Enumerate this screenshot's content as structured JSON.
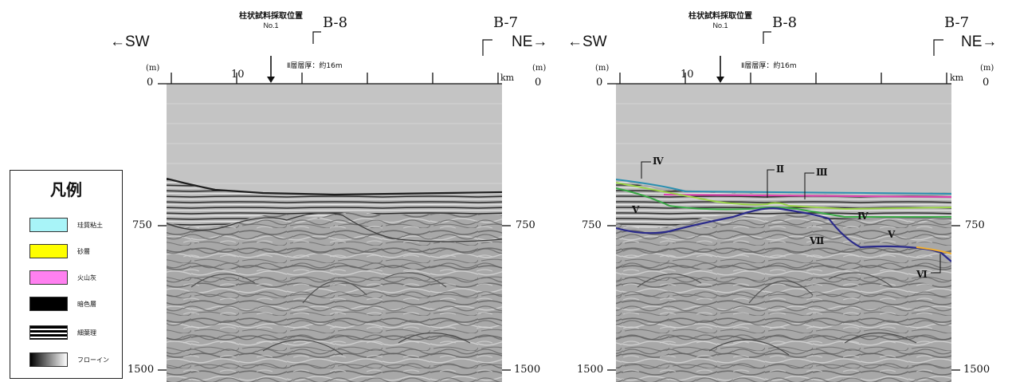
{
  "left_panel": {
    "dir_left": "←SW",
    "dir_right": "NE→",
    "sample_title": "柱状試料採取位置",
    "sample_no": "No.1",
    "borehole_b8": "B-8",
    "borehole_b7": "B-7",
    "thickness_note": "Ⅱ層層厚：約16m",
    "unit_left": "(m)",
    "unit_right": "(m)",
    "km_label": "km",
    "dist_tick_10": "10",
    "depth_0_left": "0",
    "depth_0_right": "0",
    "depth_750_left": "750",
    "depth_750_right": "750",
    "depth_1500_left": "1500",
    "depth_1500_right": "1500"
  },
  "right_panel": {
    "dir_left": "←SW",
    "dir_right": "NE→",
    "sample_title": "柱状試料採取位置",
    "sample_no": "No.1",
    "borehole_b8": "B-8",
    "borehole_b7": "B-7",
    "thickness_note": "Ⅱ層層厚：約16m",
    "unit_left": "(m)",
    "unit_right": "(m)",
    "km_label": "km",
    "dist_tick_10": "10",
    "depth_0_left": "0",
    "depth_0_right": "0",
    "depth_750_left": "750",
    "depth_750_right": "750",
    "depth_1500_left": "1500",
    "depth_1500_right": "1500",
    "layer_labels": {
      "iv_top": "Ⅳ",
      "ii": "Ⅱ",
      "iii": "Ⅲ",
      "v_left": "Ⅴ",
      "iv_right": "Ⅳ",
      "v_right": "Ⅴ",
      "vii": "Ⅶ",
      "vi": "Ⅵ"
    },
    "horizon_colors": {
      "siliceous_clay": "#2a8fb0",
      "sand": "#f2c744",
      "volcanic_ash": "#e040b0",
      "iii_line": "#7ac943",
      "iv_line": "#39a845",
      "v_line": "#2a2a8a"
    }
  },
  "legend": {
    "title": "凡例",
    "items": [
      {
        "label": "珪質粘土",
        "color": "#a8f4f8",
        "icon": "fill-swatch"
      },
      {
        "label": "砂層",
        "color": "#ffff00",
        "icon": "fill-swatch"
      },
      {
        "label": "火山灰",
        "color": "#ff80f0",
        "icon": "fill-swatch"
      },
      {
        "label": "暗色層",
        "color": "#000000",
        "icon": "fill-swatch"
      },
      {
        "label": "細葉理",
        "color": "#000000",
        "icon": "stripe-swatch"
      },
      {
        "label": "フローイン",
        "color": "#000000",
        "icon": "gradient-swatch"
      }
    ]
  }
}
